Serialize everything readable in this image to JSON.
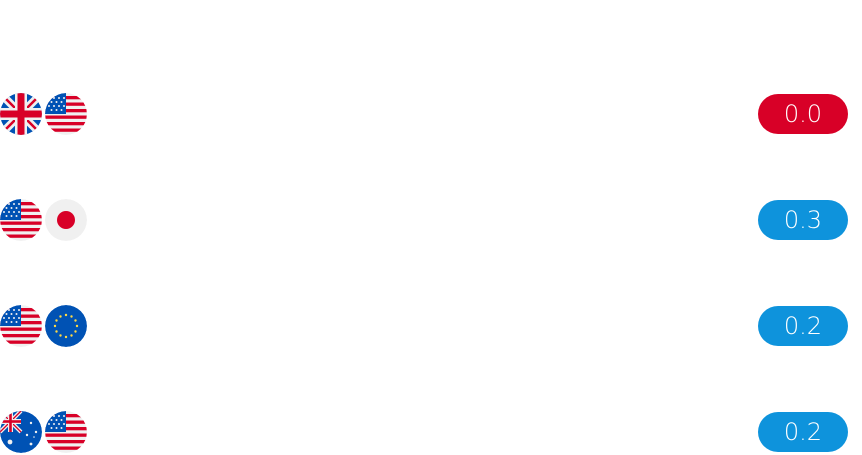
{
  "colors": {
    "badge_red": "#d80027",
    "badge_blue": "#0e93dc"
  },
  "rows": [
    {
      "flags": [
        "uk-flag-icon",
        "us-flag-icon"
      ],
      "value": "0.0",
      "badge_color": "#d80027"
    },
    {
      "flags": [
        "us-flag-icon",
        "jp-flag-icon"
      ],
      "value": "0.3",
      "badge_color": "#0e93dc"
    },
    {
      "flags": [
        "us-flag-icon",
        "eu-flag-icon"
      ],
      "value": "0.2",
      "badge_color": "#0e93dc"
    },
    {
      "flags": [
        "au-flag-icon",
        "us-flag-icon"
      ],
      "value": "0.2",
      "badge_color": "#0e93dc"
    }
  ]
}
